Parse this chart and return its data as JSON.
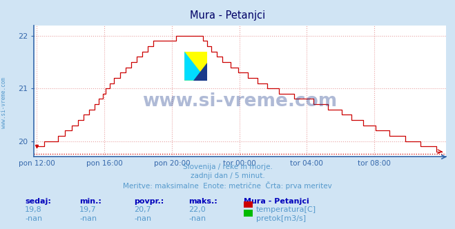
{
  "title": "Mura - Petanjci",
  "bg_color": "#d0e4f4",
  "plot_bg_color": "#ffffff",
  "grid_color": "#e8a0a0",
  "grid_style": ":",
  "line_color": "#cc0000",
  "axis_color": "#3366aa",
  "text_color": "#5599cc",
  "ylim": [
    19.7,
    22.2
  ],
  "yticks": [
    20,
    21,
    22
  ],
  "xtick_labels": [
    "pon 12:00",
    "pon 16:00",
    "pon 20:00",
    "tor 00:00",
    "tor 04:00",
    "tor 08:00"
  ],
  "xtick_positions": [
    0,
    48,
    96,
    144,
    192,
    240
  ],
  "watermark_text": "www.si-vreme.com",
  "watermark_color": "#1a3a8a",
  "subtitle1": "Slovenija / reke in morje.",
  "subtitle2": "zadnji dan / 5 minut.",
  "subtitle3": "Meritve: maksimalne  Enote: metrične  Črta: prva meritev",
  "footer_labels": [
    "sedaj:",
    "min.:",
    "povpr.:",
    "maks.:"
  ],
  "footer_values1": [
    "19,8",
    "19,7",
    "20,7",
    "22,0"
  ],
  "footer_values2": [
    "-nan",
    "-nan",
    "-nan",
    "-nan"
  ],
  "legend_title": "Mura - Petanjci",
  "legend_items": [
    "temperatura[C]",
    "pretok[m3/s]"
  ],
  "legend_colors": [
    "#cc0000",
    "#00bb00"
  ],
  "hline_color": "#cc0000",
  "hline_y": 19.76,
  "left_label": "www.si-vreme.com",
  "n_points": 289
}
